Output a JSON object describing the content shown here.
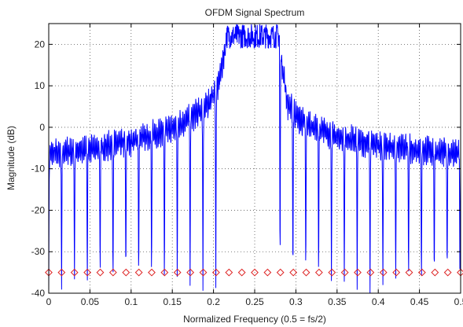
{
  "chart_data": {
    "type": "line",
    "title": "OFDM Signal Spectrum",
    "xlabel": "Normalized Frequency (0.5 = fs/2)",
    "ylabel": "Magnitude (dB)",
    "xlim": [
      0,
      0.5
    ],
    "ylim": [
      -40,
      25
    ],
    "grid": true,
    "x_ticks": [
      0,
      0.05,
      0.1,
      0.15,
      0.2,
      0.25,
      0.3,
      0.35,
      0.4,
      0.45,
      0.5
    ],
    "x_tick_labels": [
      "0",
      "0.05",
      "0.1",
      "0.15",
      "0.2",
      "0.25",
      "0.3",
      "0.35",
      "0.4",
      "0.45",
      "0.5"
    ],
    "y_ticks": [
      20,
      10,
      0,
      -10,
      -20,
      -30,
      -40
    ],
    "y_tick_labels": [
      "20",
      "10",
      "0",
      "-10",
      "-20",
      "-30",
      "-40"
    ],
    "series": [
      {
        "style": "line",
        "color": "#0000ff",
        "passband": [
          0.215,
          0.28
        ],
        "passband_level_db": 22,
        "sidelobe_envelope": {
          "x": [
            0,
            0.05,
            0.1,
            0.15,
            0.19,
            0.205,
            0.215,
            0.28,
            0.29,
            0.305,
            0.35,
            0.4,
            0.45,
            0.5
          ],
          "y": [
            -4,
            -3,
            -1,
            2,
            7,
            12,
            22,
            22,
            8,
            4,
            0,
            -2,
            -3,
            -4
          ]
        },
        "null_spacing": 0.0156,
        "null_depth_db": -40
      },
      {
        "style": "markers",
        "marker": "diamond",
        "color": "#dd2222",
        "y": -35,
        "x": [
          0,
          0.0156,
          0.0312,
          0.0469,
          0.0625,
          0.0781,
          0.0938,
          0.1094,
          0.125,
          0.1406,
          0.1562,
          0.1719,
          0.1875,
          0.2031,
          0.2188,
          0.2344,
          0.25,
          0.2656,
          0.2812,
          0.2969,
          0.3125,
          0.3281,
          0.3438,
          0.3594,
          0.375,
          0.3906,
          0.4062,
          0.4219,
          0.4375,
          0.4531,
          0.4688,
          0.4844,
          0.5
        ]
      }
    ]
  }
}
